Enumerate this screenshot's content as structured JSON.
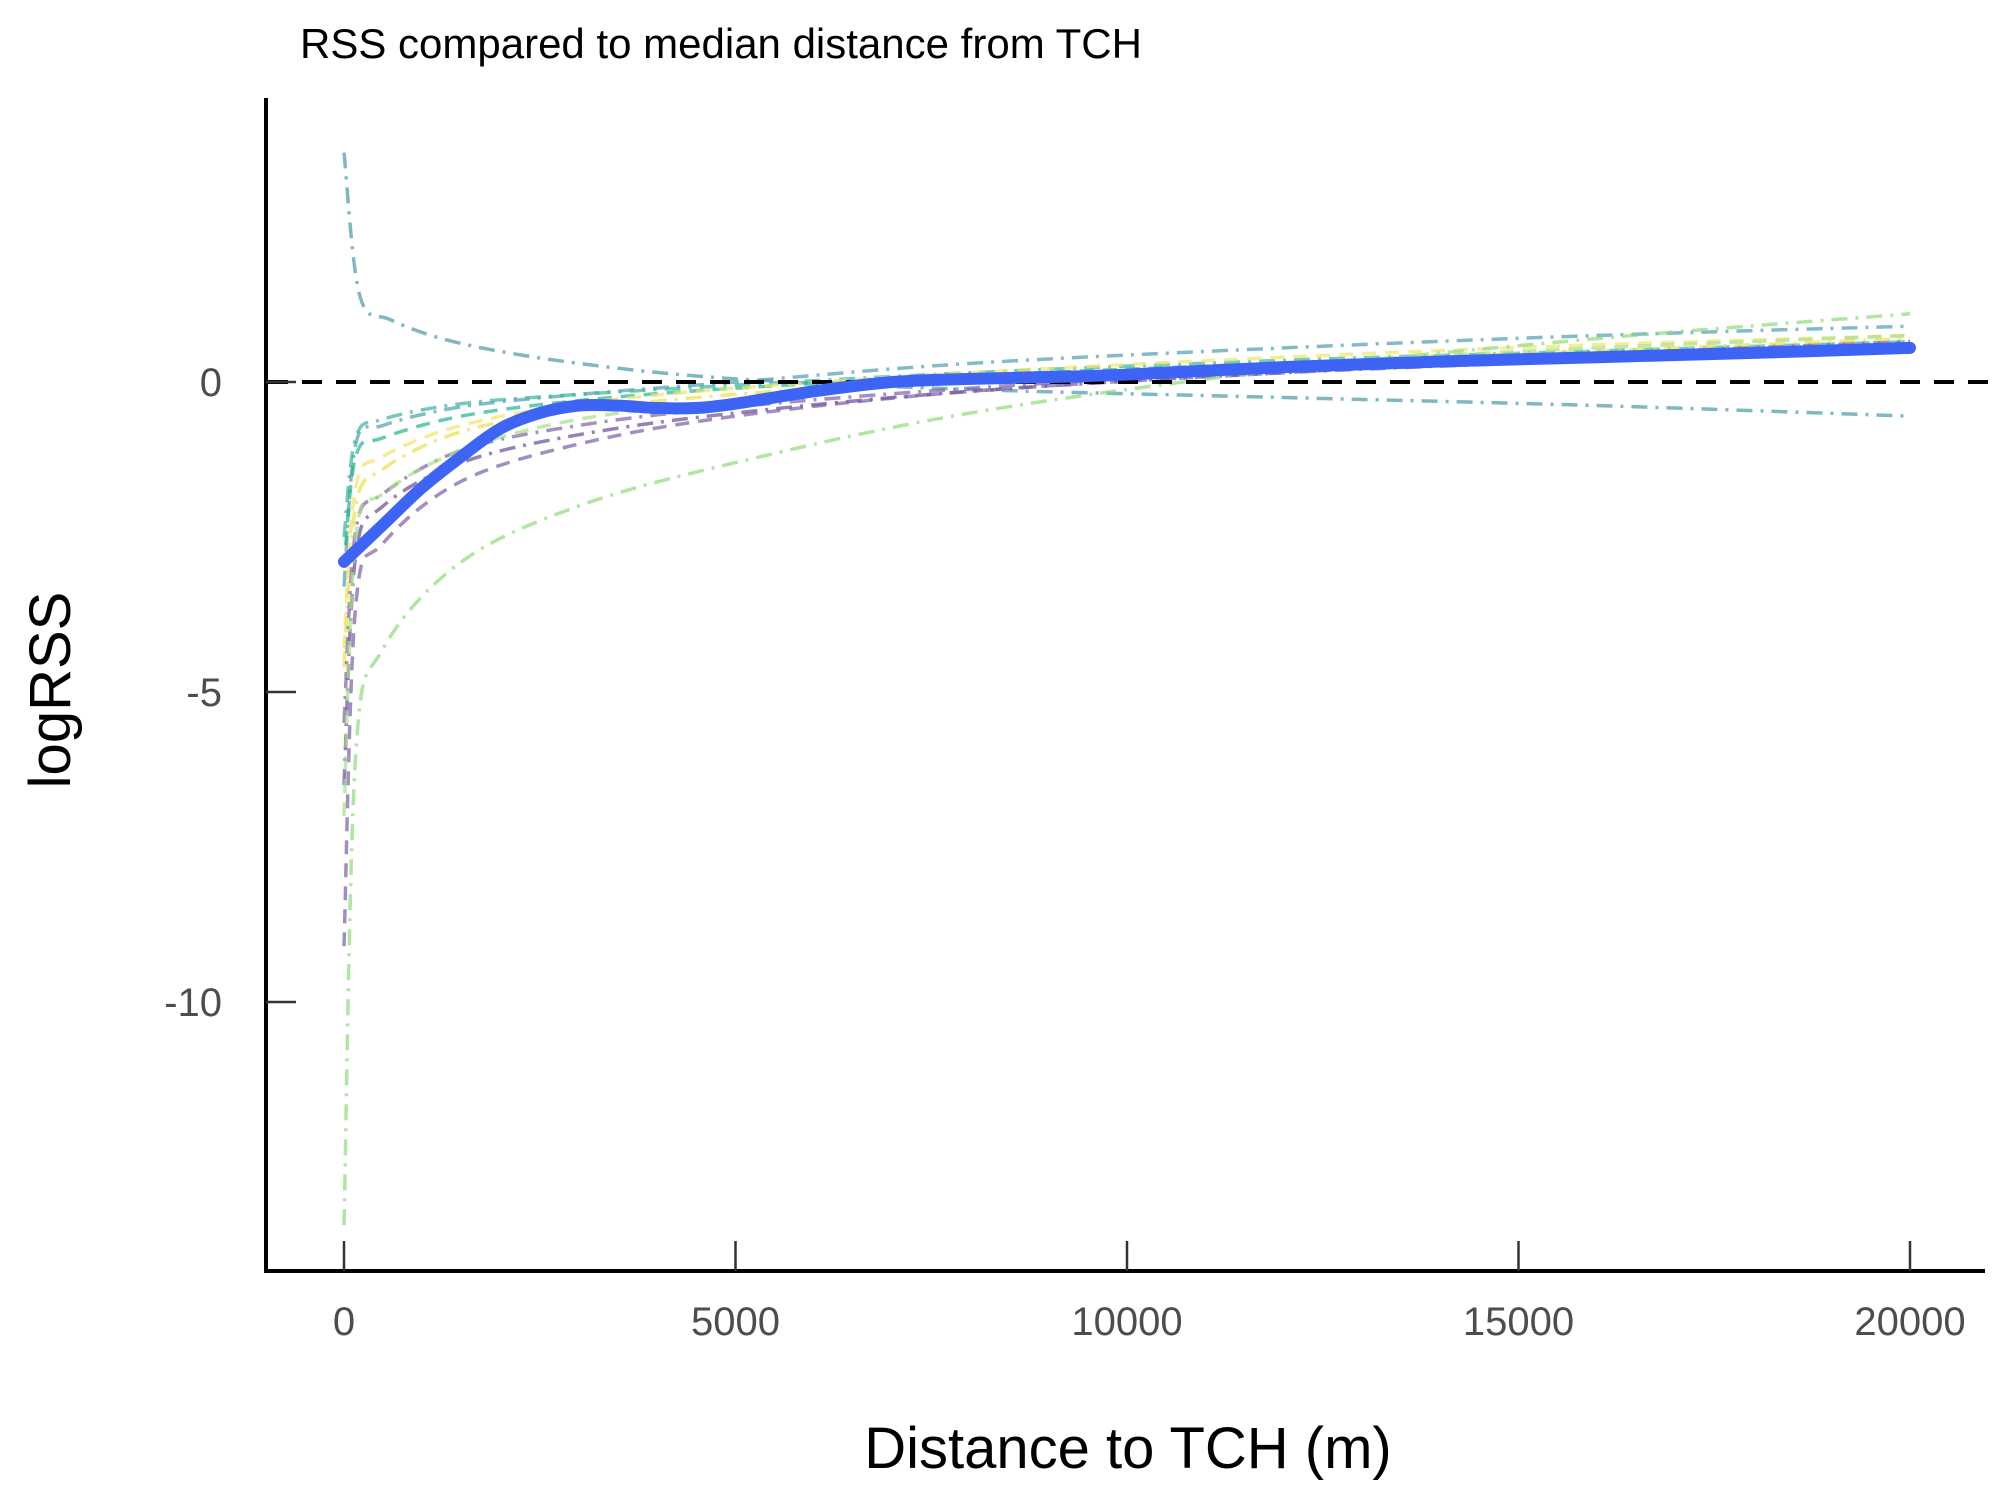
{
  "chart_data": {
    "type": "line",
    "title": "RSS compared to median distance from TCH",
    "xlabel": "Distance to TCH (m)",
    "ylabel": "logRSS",
    "xlim": [
      -1000,
      21000
    ],
    "ylim": [
      -14.5,
      4.5
    ],
    "xticks": [
      0,
      5000,
      10000,
      15000,
      20000
    ],
    "xtick_labels": [
      "0",
      "5000",
      "10000",
      "15000",
      "20000"
    ],
    "yticks": [
      0,
      -5,
      -10
    ],
    "ytick_labels": [
      "0",
      "-5",
      "-10"
    ],
    "grid": false,
    "legend": "none",
    "reference_line": {
      "y": 0,
      "style": "dashed",
      "color": "#000000"
    },
    "mean_series": {
      "color": "#3d64f5",
      "x": [
        0,
        500,
        1000,
        1500,
        2000,
        2500,
        3000,
        3500,
        4000,
        4500,
        5000,
        6000,
        7000,
        8000,
        9000,
        10000,
        12000,
        14000,
        16000,
        18000,
        20000
      ],
      "y": [
        -2.9,
        -2.3,
        -1.7,
        -1.2,
        -0.75,
        -0.5,
        -0.38,
        -0.38,
        -0.42,
        -0.42,
        -0.35,
        -0.15,
        0.0,
        0.05,
        0.08,
        0.12,
        0.24,
        0.33,
        0.4,
        0.47,
        0.55
      ]
    },
    "series": [
      {
        "color": "#4a9aa6",
        "style": "dashdot",
        "x": [
          0,
          200,
          600,
          1500,
          3000,
          5000,
          8000,
          12000,
          16000,
          20000
        ],
        "y": [
          3.7,
          1.4,
          1.0,
          0.62,
          0.3,
          0.05,
          -0.12,
          -0.25,
          -0.38,
          -0.55
        ]
      },
      {
        "color": "#4f9fb0",
        "style": "dashdot",
        "x": [
          0,
          150,
          500,
          1500,
          3000,
          5000,
          8000,
          12000,
          16000,
          20000
        ],
        "y": [
          -3.3,
          -1.0,
          -0.7,
          -0.4,
          -0.2,
          0.0,
          0.3,
          0.55,
          0.75,
          0.9
        ]
      },
      {
        "color": "#3bb59c",
        "style": "dashdot",
        "x": [
          0,
          150,
          500,
          1500,
          3000,
          5000,
          8000,
          12000,
          16000,
          20000
        ],
        "y": [
          -2.5,
          -0.9,
          -0.6,
          -0.35,
          -0.2,
          -0.05,
          0.15,
          0.35,
          0.5,
          0.65
        ]
      },
      {
        "color": "#26b48a",
        "style": "dashed",
        "x": [
          0,
          150,
          500,
          1500,
          3000,
          5000,
          8000,
          12000,
          16000,
          20000
        ],
        "y": [
          -3.0,
          -1.2,
          -0.9,
          -0.55,
          -0.3,
          -0.1,
          0.1,
          0.3,
          0.45,
          0.6
        ]
      },
      {
        "color": "#e8e048",
        "style": "dashdot",
        "x": [
          0,
          150,
          500,
          1500,
          3000,
          5000,
          8000,
          12000,
          16000,
          20000
        ],
        "y": [
          -4.6,
          -2.0,
          -1.4,
          -0.8,
          -0.45,
          -0.2,
          0.05,
          0.3,
          0.5,
          0.7
        ]
      },
      {
        "color": "#f0e66a",
        "style": "dashed",
        "x": [
          0,
          150,
          500,
          1500,
          3000,
          5000,
          8000,
          12000,
          16000,
          20000
        ],
        "y": [
          -4.3,
          -1.7,
          -1.2,
          -0.7,
          -0.35,
          -0.1,
          0.15,
          0.4,
          0.6,
          0.75
        ]
      },
      {
        "color": "#6a4c93",
        "style": "dashdot",
        "x": [
          0,
          150,
          500,
          1500,
          3000,
          5000,
          8000,
          12000,
          16000,
          20000
        ],
        "y": [
          -6.5,
          -2.8,
          -2.0,
          -1.3,
          -0.85,
          -0.5,
          -0.15,
          0.15,
          0.35,
          0.55
        ]
      },
      {
        "color": "#7b5ea7",
        "style": "dashed",
        "x": [
          0,
          150,
          500,
          1500,
          3000,
          5000,
          8000,
          12000,
          16000,
          20000
        ],
        "y": [
          -9.1,
          -3.6,
          -2.6,
          -1.6,
          -1.0,
          -0.55,
          -0.15,
          0.15,
          0.4,
          0.6
        ]
      },
      {
        "color": "#7d63a8",
        "style": "dashdot",
        "x": [
          0,
          150,
          500,
          1500,
          3000,
          5000,
          8000,
          12000,
          16000,
          20000
        ],
        "y": [
          -5.5,
          -2.4,
          -1.8,
          -1.1,
          -0.7,
          -0.4,
          -0.1,
          0.2,
          0.45,
          0.65
        ]
      },
      {
        "color": "#8fdc7a",
        "style": "dashdot",
        "x": [
          0,
          150,
          500,
          1500,
          3000,
          5000,
          8000,
          12000,
          16000,
          20000
        ],
        "y": [
          -13.6,
          -6.0,
          -4.3,
          -2.9,
          -2.0,
          -1.3,
          -0.5,
          0.2,
          0.7,
          1.1
        ]
      },
      {
        "color": "#a6e08a",
        "style": "dashed",
        "x": [
          0,
          150,
          500,
          1500,
          3000,
          5000,
          8000,
          12000,
          16000,
          20000
        ],
        "y": [
          -7.0,
          -2.5,
          -1.8,
          -1.1,
          -0.6,
          -0.3,
          0.05,
          0.3,
          0.55,
          0.75
        ]
      }
    ]
  }
}
